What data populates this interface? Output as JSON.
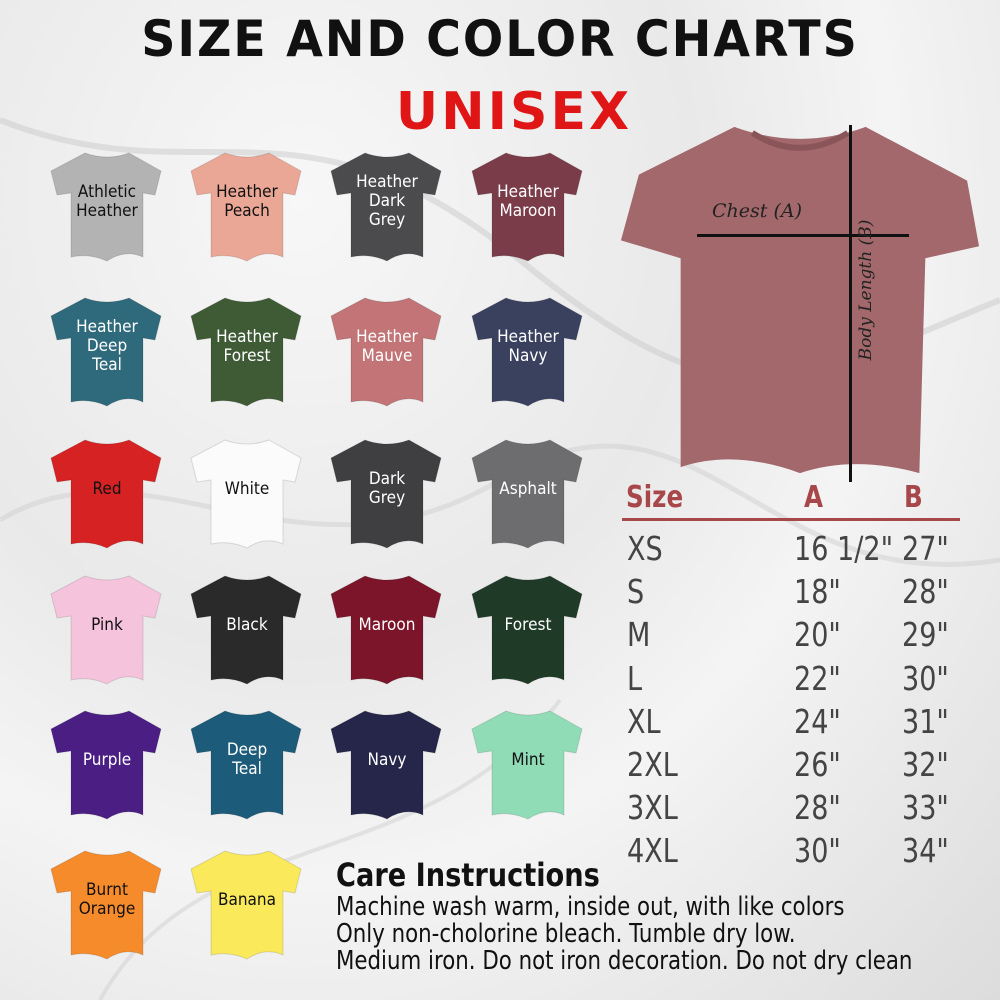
{
  "header": {
    "title": "SIZE AND COLOR CHARTS",
    "subtitle": "UNISEX",
    "title_color": "#111111",
    "subtitle_color": "#e01616"
  },
  "colors": [
    {
      "name": "Athletic\nHeather",
      "hex": "#b3b3b3",
      "text": "#111111"
    },
    {
      "name": "Heather\nPeach",
      "hex": "#eaa796",
      "text": "#111111"
    },
    {
      "name": "Heather\nDark\nGrey",
      "hex": "#4b4b4e",
      "text": "#ffffff"
    },
    {
      "name": "Heather\nMaroon",
      "hex": "#7b3c4a",
      "text": "#ffffff"
    },
    {
      "name": "Heather\nDeep\nTeal",
      "hex": "#2e6a7b",
      "text": "#ffffff"
    },
    {
      "name": "Heather\nForest",
      "hex": "#3f5b36",
      "text": "#ffffff"
    },
    {
      "name": "Heather\nMauve",
      "hex": "#c27476",
      "text": "#ffffff"
    },
    {
      "name": "Heather\nNavy",
      "hex": "#3a415f",
      "text": "#ffffff"
    },
    {
      "name": "Red",
      "hex": "#d62222",
      "text": "#111111"
    },
    {
      "name": "White",
      "hex": "#fbfbfb",
      "text": "#111111"
    },
    {
      "name": "Dark\nGrey",
      "hex": "#3f3f42",
      "text": "#ffffff"
    },
    {
      "name": "Asphalt",
      "hex": "#6d6d70",
      "text": "#ffffff"
    },
    {
      "name": "Pink",
      "hex": "#f5c4dc",
      "text": "#111111"
    },
    {
      "name": "Black",
      "hex": "#2a2a2b",
      "text": "#ffffff"
    },
    {
      "name": "Maroon",
      "hex": "#7c1529",
      "text": "#ffffff"
    },
    {
      "name": "Forest",
      "hex": "#1f3b27",
      "text": "#ffffff"
    },
    {
      "name": "Purple",
      "hex": "#4b1e84",
      "text": "#ffffff"
    },
    {
      "name": "Deep\nTeal",
      "hex": "#1c5b79",
      "text": "#ffffff"
    },
    {
      "name": "Navy",
      "hex": "#26264b",
      "text": "#ffffff"
    },
    {
      "name": "Mint",
      "hex": "#90dcb7",
      "text": "#111111"
    },
    {
      "name": "Burnt\nOrange",
      "hex": "#f68b2b",
      "text": "#111111"
    },
    {
      "name": "Banana",
      "hex": "#f9e95b",
      "text": "#111111"
    }
  ],
  "diagram": {
    "chest_label": "Chest (A)",
    "length_label": "Body Length (B)",
    "shirt_color": "#a2686b"
  },
  "size_table": {
    "headers": [
      "Size",
      "A",
      "B"
    ],
    "header_color": "#a8474a",
    "rows": [
      [
        "XS",
        "16 1/2\"",
        "27\""
      ],
      [
        "S",
        "18\"",
        "28\""
      ],
      [
        "M",
        "20\"",
        "29\""
      ],
      [
        "L",
        "22\"",
        "30\""
      ],
      [
        "XL",
        "24\"",
        "31\""
      ],
      [
        "2XL",
        "26\"",
        "32\""
      ],
      [
        "3XL",
        "28\"",
        "33\""
      ],
      [
        "4XL",
        "30\"",
        "34\""
      ]
    ]
  },
  "care": {
    "title": "Care Instructions",
    "lines": [
      "Machine wash warm, inside out, with like colors",
      "Only non-cholorine bleach. Tumble dry low.",
      "Medium iron. Do not iron decoration. Do not dry clean"
    ]
  }
}
